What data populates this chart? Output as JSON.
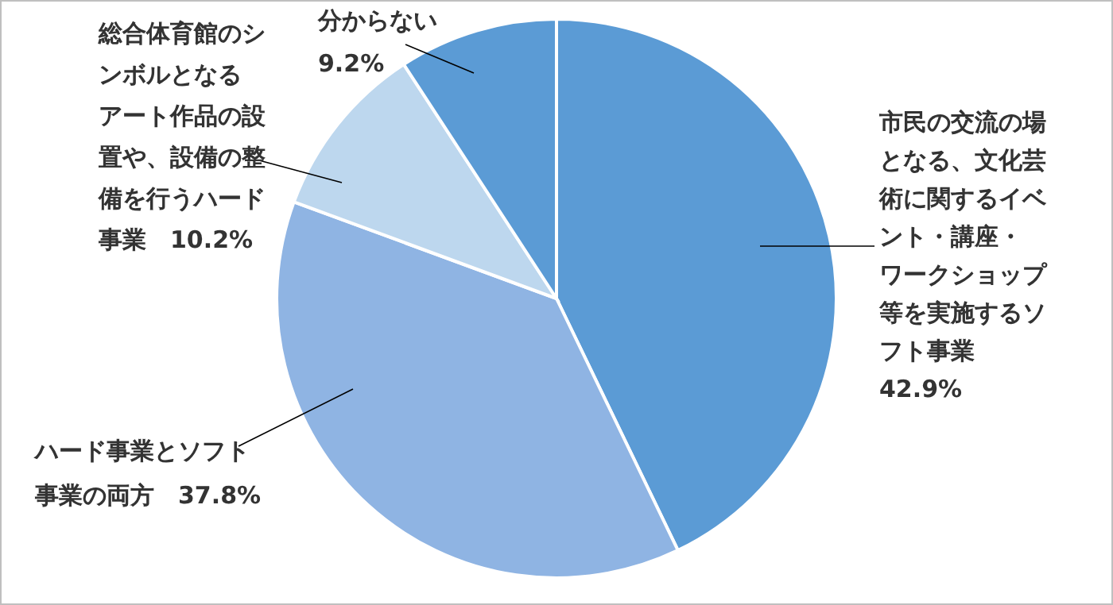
{
  "chart_data": {
    "type": "pie",
    "categories": [
      "市民の交流の場となる、文化芸術に関するイベント・講座・ワークショップ等を実施するソフト事業",
      "ハード事業とソフト事業の両方",
      "総合体育館のシンボルとなるアート作品の設置や、設備の整備を行うハード事業",
      "分からない"
    ],
    "values": [
      42.9,
      37.8,
      10.2,
      9.2
    ],
    "value_labels": [
      "42.9%",
      "37.8%",
      "10.2%",
      "9.2%"
    ],
    "colors": [
      "#5b9bd5",
      "#8fb4e3",
      "#bdd7ee",
      "#5b9bd5"
    ],
    "legend": false
  }
}
